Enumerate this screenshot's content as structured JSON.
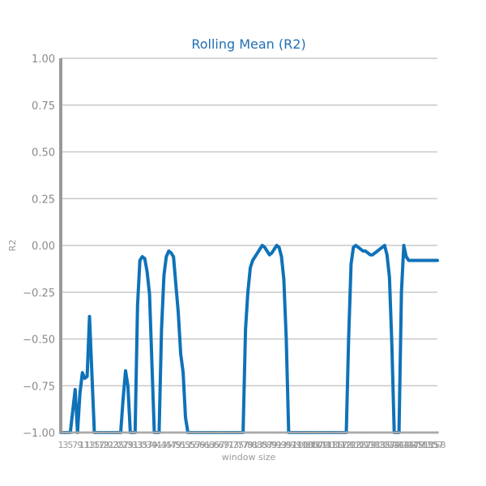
{
  "chart_data": {
    "type": "line",
    "title": "Rolling Mean (R2)",
    "xlabel": "window size",
    "ylabel": "R2",
    "ylim": [
      -1.0,
      1.0
    ],
    "yticks": [
      "1.00",
      "0.75",
      "0.50",
      "0.25",
      "0.00",
      "−0.25",
      "−0.50",
      "−0.75",
      "−1.00"
    ],
    "xlim": [
      1,
      158
    ],
    "grid": "horizontal",
    "line_color": "#0e72b8",
    "x": [
      1,
      5,
      7,
      8,
      9,
      10,
      11,
      12,
      13,
      15,
      16,
      17,
      18,
      19,
      20,
      26,
      27,
      28,
      29,
      30,
      31,
      32,
      33,
      34,
      35,
      36,
      37,
      38,
      40,
      42,
      43,
      44,
      45,
      46,
      47,
      48,
      50,
      51,
      52,
      53,
      54,
      56,
      58,
      60,
      70,
      77,
      78,
      79,
      80,
      81,
      82,
      83,
      84,
      85,
      86,
      87,
      88,
      89,
      90,
      91,
      92,
      93,
      94,
      95,
      96,
      120,
      121,
      122,
      123,
      124,
      125,
      126,
      127,
      128,
      129,
      130,
      131,
      132,
      133,
      134,
      135,
      136,
      137,
      138,
      139,
      140,
      142,
      143,
      144,
      145,
      146,
      147,
      148,
      150,
      158
    ],
    "values": [
      -1.0,
      -1.0,
      -0.77,
      -1.0,
      -0.79,
      -0.68,
      -0.71,
      -0.7,
      -0.38,
      -1.0,
      -1.0,
      -1.0,
      -1.0,
      -1.0,
      -1.0,
      -1.0,
      -0.82,
      -0.67,
      -0.75,
      -1.0,
      -1.0,
      -1.0,
      -0.32,
      -0.08,
      -0.06,
      -0.07,
      -0.14,
      -0.26,
      -1.0,
      -1.0,
      -0.45,
      -0.16,
      -0.06,
      -0.03,
      -0.04,
      -0.06,
      -0.36,
      -0.58,
      -0.68,
      -0.92,
      -1.0,
      -1.0,
      -1.0,
      -1.0,
      -1.0,
      -1.0,
      -0.45,
      -0.25,
      -0.12,
      -0.08,
      -0.06,
      -0.04,
      -0.02,
      0.0,
      -0.01,
      -0.03,
      -0.05,
      -0.04,
      -0.02,
      0.0,
      -0.01,
      -0.06,
      -0.18,
      -0.5,
      -1.0,
      -1.0,
      -0.5,
      -0.1,
      -0.01,
      0.0,
      -0.01,
      -0.02,
      -0.03,
      -0.03,
      -0.04,
      -0.05,
      -0.05,
      -0.04,
      -0.03,
      -0.02,
      -0.01,
      0.0,
      -0.05,
      -0.17,
      -0.52,
      -1.0,
      -1.0,
      -0.25,
      0.0,
      -0.06,
      -0.08,
      -0.08,
      -0.08,
      -0.08,
      -0.08
    ],
    "xticks": [
      "1",
      "3",
      "5",
      "7",
      "9",
      "11",
      "13",
      "15",
      "17",
      "19",
      "21",
      "23",
      "25",
      "27",
      "29",
      "31",
      "33",
      "35",
      "37",
      "39",
      "41",
      "43",
      "45",
      "47",
      "49",
      "51",
      "53",
      "55",
      "57",
      "59",
      "61",
      "63",
      "65",
      "67",
      "69",
      "71",
      "73",
      "75",
      "77",
      "79",
      "81",
      "83",
      "85",
      "87",
      "89",
      "91",
      "93",
      "95",
      "97",
      "99",
      "101",
      "103",
      "105",
      "107",
      "109",
      "111",
      "113",
      "115",
      "117",
      "119",
      "121",
      "123",
      "125",
      "127",
      "129",
      "131",
      "133",
      "135",
      "137",
      "139",
      "141",
      "143",
      "145",
      "147",
      "149",
      "151",
      "153",
      "155",
      "157",
      "158"
    ]
  }
}
